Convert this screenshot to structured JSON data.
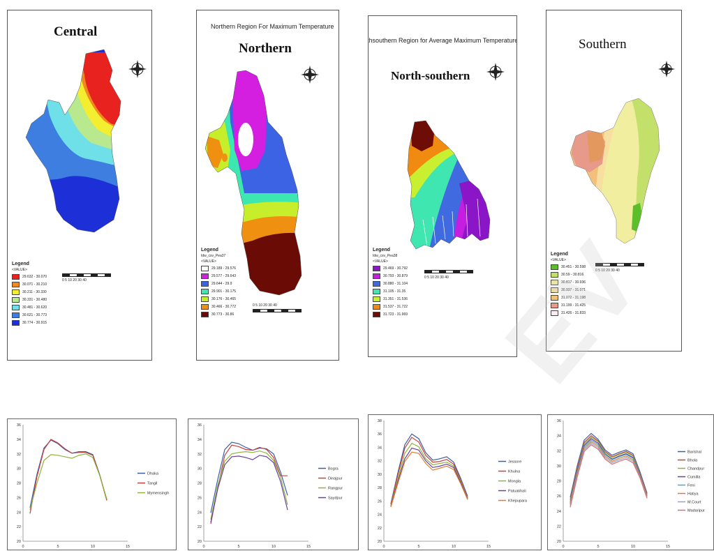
{
  "maps": {
    "central": {
      "title": "Central",
      "legend_title": "Legend",
      "legend_sub": "<VALUE>",
      "items": [
        {
          "label": "29.632 - 30.070",
          "color": "#e8231f"
        },
        {
          "label": "30.071 - 30.210",
          "color": "#f08a1f"
        },
        {
          "label": "30.211 - 30.330",
          "color": "#f3ee30"
        },
        {
          "label": "30.331 - 30.480",
          "color": "#b8e98e"
        },
        {
          "label": "30.481 - 30.620",
          "color": "#6fe0e8"
        },
        {
          "label": "30.621 - 30.773",
          "color": "#3d7ee0"
        },
        {
          "label": "30.774 - 30.915",
          "color": "#1d2fd6"
        }
      ],
      "scale_nums": "0 5 10  20  30  40"
    },
    "northern": {
      "title": "Northern",
      "subtitle": "Northern Region For Maximum Temperature",
      "legend_title": "Legend",
      "legend_field": "Idw_csv_Pea37",
      "legend_sub": "<VALUE>",
      "items": [
        {
          "label": "29.189 - 29.576",
          "color": "#ffffff"
        },
        {
          "label": "29.577 - 29.643",
          "color": "#d41fe0"
        },
        {
          "label": "29.644 - 29.9",
          "color": "#3b63e3"
        },
        {
          "label": "29.901 - 30.175",
          "color": "#3de8b0"
        },
        {
          "label": "30.176 - 30.465",
          "color": "#c6ee2a"
        },
        {
          "label": "30.466 - 30.772",
          "color": "#f09010"
        },
        {
          "label": "30.773 - 30.86",
          "color": "#6b0b05"
        }
      ],
      "scale_nums": "0 5 10  20  30  40"
    },
    "northsouthern": {
      "title": "North-southern",
      "subtitle": "orthsouthern Region for Average Maximum Temperature",
      "legend_title": "Legend",
      "legend_field": "Idw_csv_Pea38",
      "legend_sub": "<VALUE>",
      "items": [
        {
          "label": "29.469 - 30.792",
          "color": "#8b16c8"
        },
        {
          "label": "30.793 - 30.879",
          "color": "#c51ee0"
        },
        {
          "label": "30.880 - 31.104",
          "color": "#3f6ae0"
        },
        {
          "label": "31.105 - 31.35",
          "color": "#40e6b0"
        },
        {
          "label": "31.351 - 31.536",
          "color": "#c8ef30"
        },
        {
          "label": "31.537 - 31.722",
          "color": "#f08a10"
        },
        {
          "label": "31.723 - 31.969",
          "color": "#6e0d05"
        }
      ],
      "scale_nums": "0 5 10  20  30  40"
    },
    "southern": {
      "title": "Southern",
      "legend_title": "Legend",
      "legend_sub": "<VALUE>",
      "items": [
        {
          "label": "30.451 - 30.598",
          "color": "#5cbf2a"
        },
        {
          "label": "30.59 - 30.816",
          "color": "#c3e06a"
        },
        {
          "label": "30.817 - 30.936",
          "color": "#f2eea0"
        },
        {
          "label": "30.937 - 31.071",
          "color": "#f6dfa0"
        },
        {
          "label": "31.072 - 31.198",
          "color": "#f2c07a"
        },
        {
          "label": "31.199 - 31.425",
          "color": "#e89a8a"
        },
        {
          "label": "31.426 - 31.833",
          "color": "#fbeef0"
        }
      ],
      "scale_nums": "0 5 10  20  30  40"
    }
  },
  "chart_data": [
    {
      "type": "line",
      "xlim": [
        0,
        15
      ],
      "ylim": [
        20,
        36
      ],
      "xticks": [
        0,
        5,
        10,
        15
      ],
      "yticks": [
        20,
        22,
        24,
        26,
        28,
        30,
        32,
        34,
        36
      ],
      "x": [
        1,
        2,
        3,
        4,
        5,
        6,
        7,
        8,
        9,
        10,
        11,
        12
      ],
      "series": [
        {
          "name": "Dhaka",
          "color": "#3b5ea8",
          "values": [
            24.6,
            29.2,
            32.8,
            33.9,
            33.4,
            32.6,
            32.1,
            32.3,
            32.3,
            31.9,
            29.1,
            25.7
          ]
        },
        {
          "name": "Tangil",
          "color": "#c8403a",
          "values": [
            23.8,
            28.9,
            32.6,
            34.0,
            33.5,
            32.7,
            32.1,
            32.2,
            32.2,
            31.8,
            29.0,
            25.6
          ]
        },
        {
          "name": "Mymensingh",
          "color": "#8fb33a",
          "values": [
            24.3,
            28.0,
            31.1,
            31.9,
            31.8,
            31.6,
            31.4,
            31.8,
            32.0,
            31.5,
            29.0,
            25.8
          ]
        }
      ]
    },
    {
      "type": "line",
      "xlim": [
        0,
        15
      ],
      "ylim": [
        20,
        36
      ],
      "xticks": [
        0,
        5,
        10,
        15
      ],
      "yticks": [
        20,
        22,
        24,
        26,
        28,
        30,
        32,
        34,
        36
      ],
      "x": [
        1,
        2,
        3,
        4,
        5,
        6,
        7,
        8,
        9,
        10,
        11,
        12
      ],
      "series": [
        {
          "name": "Bogra",
          "color": "#3b5ea8",
          "values": [
            23.9,
            28.5,
            32.6,
            33.6,
            33.4,
            32.9,
            32.5,
            32.8,
            32.7,
            32.0,
            29.5,
            26.3
          ]
        },
        {
          "name": "Dinajpur",
          "color": "#c8403a",
          "values": [
            22.4,
            27.4,
            31.8,
            33.2,
            33.0,
            32.6,
            32.5,
            32.9,
            32.6,
            31.5,
            29.0,
            29.0
          ]
        },
        {
          "name": "Rangpur",
          "color": "#8fb33a",
          "values": [
            23.0,
            27.7,
            31.0,
            32.0,
            32.2,
            32.3,
            32.2,
            32.4,
            32.1,
            31.1,
            28.8,
            25.0
          ]
        },
        {
          "name": "Saydpur",
          "color": "#6a3f9e",
          "values": [
            22.6,
            27.2,
            30.5,
            31.6,
            31.7,
            31.5,
            31.2,
            31.8,
            31.6,
            30.8,
            28.2,
            24.3
          ]
        }
      ]
    },
    {
      "type": "line",
      "xlim": [
        0,
        15
      ],
      "ylim": [
        20,
        38
      ],
      "xticks": [
        0,
        5,
        10,
        15
      ],
      "yticks": [
        20,
        22,
        24,
        26,
        28,
        30,
        32,
        34,
        36,
        38
      ],
      "x": [
        1,
        2,
        3,
        4,
        5,
        6,
        7,
        8,
        9,
        10,
        11,
        12
      ],
      "series": [
        {
          "name": "Jessore",
          "color": "#3b5ea8",
          "values": [
            25.6,
            30.2,
            34.4,
            36.0,
            35.3,
            33.2,
            32.1,
            32.3,
            32.6,
            31.8,
            29.4,
            26.7
          ]
        },
        {
          "name": "Khulna",
          "color": "#c8403a",
          "values": [
            25.5,
            29.9,
            33.9,
            35.5,
            34.8,
            32.8,
            31.8,
            31.9,
            32.2,
            31.5,
            29.2,
            26.5
          ]
        },
        {
          "name": "Mongla",
          "color": "#8fb33a",
          "values": [
            25.3,
            29.3,
            33.1,
            34.6,
            34.1,
            32.3,
            31.4,
            31.6,
            31.8,
            31.2,
            29.0,
            26.4
          ]
        },
        {
          "name": "Patuakhali",
          "color": "#6a3f9e",
          "values": [
            25.2,
            28.9,
            32.3,
            33.9,
            33.6,
            32.0,
            31.0,
            31.2,
            31.5,
            31.0,
            28.8,
            26.3
          ]
        },
        {
          "name": "Khepupara",
          "color": "#e07d2c",
          "values": [
            25.1,
            28.6,
            31.9,
            33.3,
            33.1,
            31.6,
            30.6,
            30.9,
            31.2,
            30.7,
            28.6,
            26.2
          ]
        }
      ]
    },
    {
      "type": "line",
      "xlim": [
        0,
        15
      ],
      "ylim": [
        20,
        36
      ],
      "xticks": [
        0,
        5,
        10,
        15
      ],
      "yticks": [
        20,
        22,
        24,
        26,
        28,
        30,
        32,
        34,
        36
      ],
      "x": [
        1,
        2,
        3,
        4,
        5,
        6,
        7,
        8,
        9,
        10,
        11,
        12
      ],
      "series": [
        {
          "name": "Barishal",
          "color": "#3b5ea8",
          "values": [
            25.8,
            30.0,
            33.4,
            34.3,
            33.5,
            32.1,
            31.4,
            31.8,
            32.1,
            31.6,
            29.2,
            26.4
          ]
        },
        {
          "name": "Bhola",
          "color": "#c8403a",
          "values": [
            25.5,
            29.7,
            33.1,
            34.0,
            33.3,
            31.9,
            31.2,
            31.6,
            31.9,
            31.4,
            29.0,
            26.3
          ]
        },
        {
          "name": "Chandpur",
          "color": "#8fb33a",
          "values": [
            25.3,
            29.5,
            32.9,
            33.8,
            33.2,
            31.8,
            31.1,
            31.5,
            31.8,
            31.3,
            28.9,
            26.2
          ]
        },
        {
          "name": "Cumilla",
          "color": "#6a3f9e",
          "values": [
            25.1,
            29.3,
            32.7,
            33.6,
            33.0,
            31.6,
            30.9,
            31.3,
            31.6,
            31.1,
            28.8,
            26.1
          ]
        },
        {
          "name": "Feni",
          "color": "#4aa8c9",
          "values": [
            25.0,
            29.1,
            32.5,
            33.4,
            32.8,
            31.5,
            30.8,
            31.2,
            31.5,
            31.0,
            28.7,
            26.0
          ]
        },
        {
          "name": "Hatiya",
          "color": "#e07d2c",
          "values": [
            24.9,
            28.9,
            32.3,
            33.2,
            32.6,
            31.3,
            30.6,
            31.0,
            31.3,
            30.8,
            28.6,
            25.9
          ]
        },
        {
          "name": "M.Court",
          "color": "#8aa6d6",
          "values": [
            24.7,
            28.7,
            32.1,
            33.0,
            32.4,
            31.1,
            30.4,
            30.8,
            31.1,
            30.6,
            28.5,
            25.8
          ]
        },
        {
          "name": "Madaripur",
          "color": "#e06a6a",
          "values": [
            24.5,
            28.5,
            31.9,
            32.8,
            32.2,
            30.9,
            30.2,
            30.6,
            30.9,
            30.4,
            28.4,
            25.7
          ]
        }
      ]
    }
  ],
  "watermark": "EV"
}
